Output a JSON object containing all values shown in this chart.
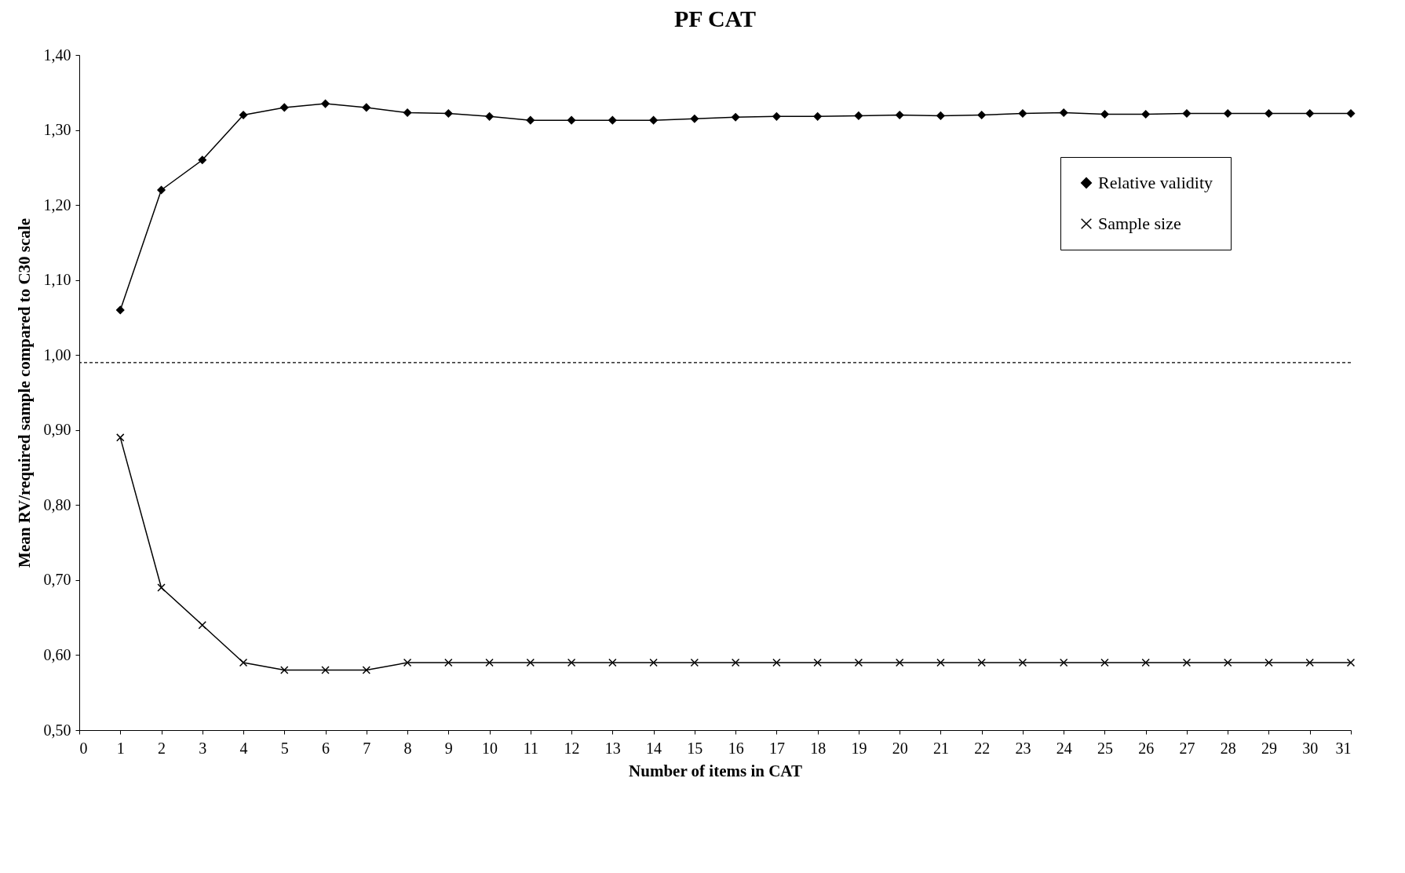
{
  "chart_data": {
    "type": "line",
    "title": "PF CAT",
    "xlabel": "Number of items in CAT",
    "ylabel": "Mean RV/required sample compared to C30 scale",
    "x": [
      1,
      2,
      3,
      4,
      5,
      6,
      7,
      8,
      9,
      10,
      11,
      12,
      13,
      14,
      15,
      16,
      17,
      18,
      19,
      20,
      21,
      22,
      23,
      24,
      25,
      26,
      27,
      28,
      29,
      30,
      31
    ],
    "series": [
      {
        "name": "Relative validity",
        "color": "#000000",
        "marker": "diamond",
        "values": [
          1.06,
          1.22,
          1.26,
          1.32,
          1.33,
          1.335,
          1.33,
          1.323,
          1.322,
          1.318,
          1.313,
          1.313,
          1.313,
          1.313,
          1.315,
          1.317,
          1.318,
          1.318,
          1.319,
          1.32,
          1.319,
          1.32,
          1.322,
          1.323,
          1.321,
          1.321,
          1.322,
          1.322,
          1.322,
          1.322,
          1.322
        ]
      },
      {
        "name": "Sample size",
        "color": "#000000",
        "marker": "cross",
        "values": [
          0.89,
          0.69,
          0.64,
          0.59,
          0.58,
          0.58,
          0.58,
          0.59,
          0.59,
          0.59,
          0.59,
          0.59,
          0.59,
          0.59,
          0.59,
          0.59,
          0.59,
          0.59,
          0.59,
          0.59,
          0.59,
          0.59,
          0.59,
          0.59,
          0.59,
          0.59,
          0.59,
          0.59,
          0.59,
          0.59,
          0.59
        ]
      }
    ],
    "xlim": [
      0,
      31
    ],
    "xticks": [
      0,
      1,
      2,
      3,
      4,
      5,
      6,
      7,
      8,
      9,
      10,
      11,
      12,
      13,
      14,
      15,
      16,
      17,
      18,
      19,
      20,
      21,
      22,
      23,
      24,
      25,
      26,
      27,
      28,
      29,
      30,
      31
    ],
    "ylim": [
      0.5,
      1.4
    ],
    "yticks": [
      {
        "value": 0.5,
        "label": "0,50"
      },
      {
        "value": 0.6,
        "label": "0,60"
      },
      {
        "value": 0.7,
        "label": "0,70"
      },
      {
        "value": 0.8,
        "label": "0,80"
      },
      {
        "value": 0.9,
        "label": "0,90"
      },
      {
        "value": 1.0,
        "label": "1,00"
      },
      {
        "value": 1.1,
        "label": "1,10"
      },
      {
        "value": 1.2,
        "label": "1,20"
      },
      {
        "value": 1.3,
        "label": "1,30"
      },
      {
        "value": 1.4,
        "label": "1,40"
      }
    ],
    "ref_lines": [
      {
        "axis": "y",
        "value": 0.99,
        "line_style": "dashed",
        "color": "#000000"
      }
    ],
    "grid": false,
    "legend": "top right",
    "line_style": "solid"
  }
}
